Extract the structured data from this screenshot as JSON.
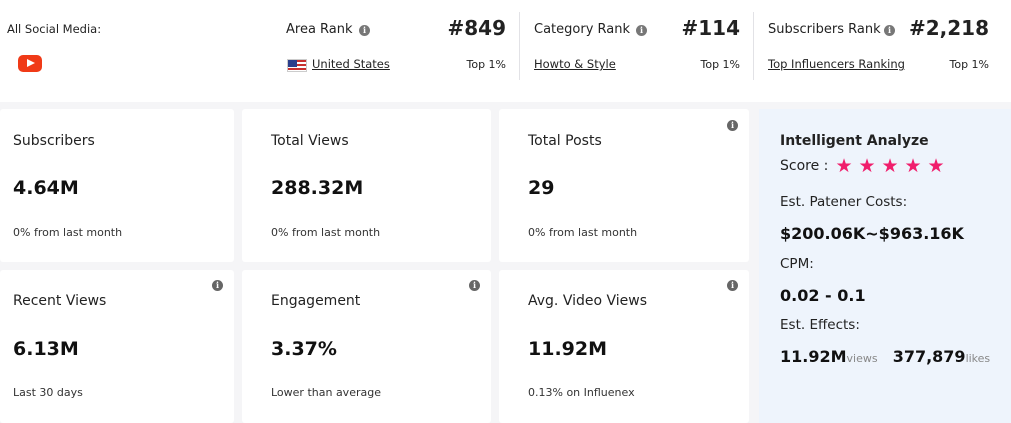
{
  "social": {
    "label": "All Social Media:",
    "icon": "youtube-icon"
  },
  "ranks": {
    "area": {
      "title": "Area Rank",
      "value": "#849",
      "link": "United States",
      "pct": "Top 1%"
    },
    "category": {
      "title": "Category Rank",
      "value": "#114",
      "link": "Howto & Style",
      "pct": "Top 1%"
    },
    "subscribers": {
      "title": "Subscribers Rank",
      "value": "#2,218",
      "link": "Top Influencers Ranking",
      "pct": "Top 1%"
    }
  },
  "stats": {
    "subscribers": {
      "title": "Subscribers",
      "value": "4.64M",
      "sub": "0% from last month"
    },
    "total_views": {
      "title": "Total Views",
      "value": "288.32M",
      "sub": "0% from last month"
    },
    "total_posts": {
      "title": "Total Posts",
      "value": "29",
      "sub": "0% from last month"
    },
    "recent_views": {
      "title": "Recent Views",
      "value": "6.13M",
      "sub": "Last 30 days"
    },
    "engagement": {
      "title": "Engagement",
      "value": "3.37%",
      "sub": "Lower than average"
    },
    "avg_video_views": {
      "title": "Avg. Video Views",
      "value": "11.92M",
      "sub": "0.13% on Influenex"
    }
  },
  "analyze": {
    "title": "Intelligent Analyze",
    "score_label": "Score :",
    "score_stars": 5,
    "costs_label": "Est. Patener Costs:",
    "costs_value": "$200.06K~$963.16K",
    "cpm_label": "CPM:",
    "cpm_value": "0.02 - 0.1",
    "effects_label": "Est. Effects:",
    "effects_views": "11.92M",
    "effects_views_unit": "views",
    "effects_likes": "377,879",
    "effects_likes_unit": "likes"
  },
  "colors": {
    "accent_star": "#f01e6c",
    "youtube_red": "#f03a17",
    "analyze_bg": "#eef4fc"
  }
}
